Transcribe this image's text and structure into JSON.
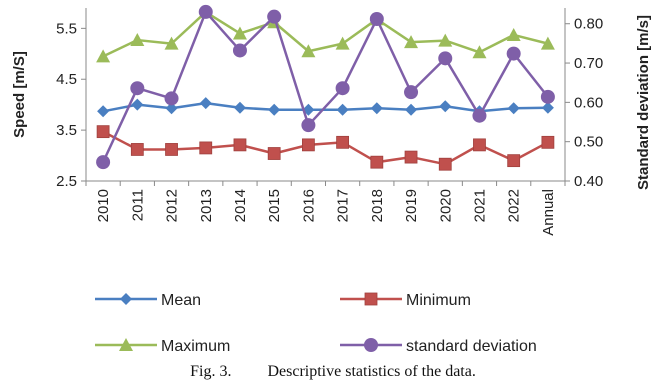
{
  "chart_data": {
    "type": "line",
    "categories": [
      "2010",
      "2011",
      "2012",
      "2013",
      "2014",
      "2015",
      "2016",
      "2017",
      "2018",
      "2019",
      "2020",
      "2021",
      "2022",
      "Annual"
    ],
    "ylabel": "Speed [m/S]",
    "y2label": "Standard deviation [m/s]",
    "ylim": [
      2.5,
      5.9
    ],
    "y2lim": [
      0.4,
      0.84
    ],
    "yticks": [
      "2.5",
      "3.5",
      "4.5",
      "5.5"
    ],
    "y2ticks": [
      "0.40",
      "0.50",
      "0.60",
      "0.70",
      "0.80"
    ],
    "legend_position": "bottom",
    "series": [
      {
        "name": "Mean",
        "axis": "left",
        "color": "#4a7fc1",
        "marker": "diamond",
        "values": [
          3.87,
          4.0,
          3.93,
          4.03,
          3.94,
          3.9,
          3.9,
          3.9,
          3.93,
          3.9,
          3.97,
          3.87,
          3.93,
          3.94
        ]
      },
      {
        "name": "Minimum",
        "axis": "left",
        "color": "#c0504d",
        "marker": "square",
        "values": [
          3.47,
          3.12,
          3.12,
          3.15,
          3.21,
          3.04,
          3.21,
          3.26,
          2.87,
          2.97,
          2.83,
          3.21,
          2.9,
          3.26
        ]
      },
      {
        "name": "Maximum",
        "axis": "left",
        "color": "#9bbb59",
        "marker": "triangle",
        "values": [
          4.95,
          5.27,
          5.2,
          5.82,
          5.4,
          5.62,
          5.05,
          5.2,
          5.68,
          5.23,
          5.26,
          5.03,
          5.37,
          5.2
        ]
      },
      {
        "name": "standard deviation",
        "axis": "right",
        "color": "#7f5fa8",
        "marker": "circle",
        "values": [
          0.448,
          0.636,
          0.61,
          0.83,
          0.732,
          0.818,
          0.542,
          0.636,
          0.812,
          0.626,
          0.712,
          0.566,
          0.724,
          0.614
        ]
      }
    ]
  },
  "caption": {
    "label": "Fig. 3.",
    "text": "Descriptive statistics of the data."
  }
}
